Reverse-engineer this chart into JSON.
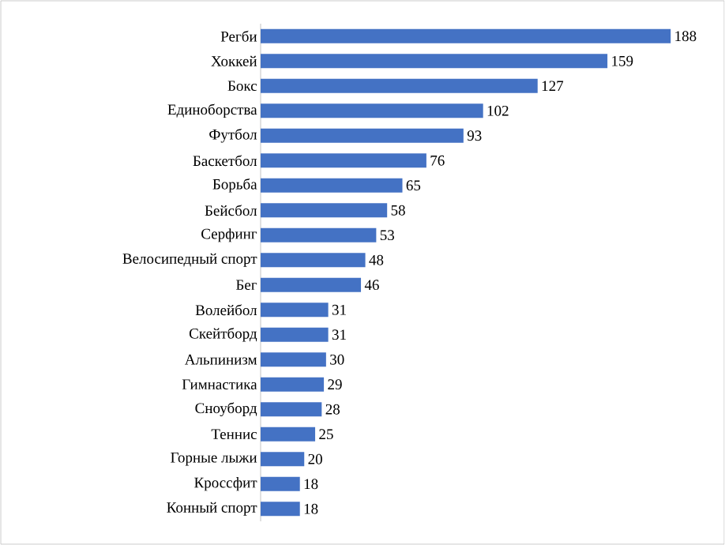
{
  "chart_data": {
    "type": "bar",
    "orientation": "horizontal",
    "data_labels": true,
    "color": "#4472c4",
    "categories": [
      "Регби",
      "Хоккей",
      "Бокс",
      "Единоборства",
      "Футбол",
      "Баскетбол",
      "Борьба",
      "Бейсбол",
      "Серфинг",
      "Велосипедный спорт",
      "Бег",
      "Волейбол",
      "Скейтборд",
      "Альпинизм",
      "Гимнастика",
      "Сноуборд",
      "Теннис",
      "Горные лыжи",
      "Кроссфит",
      "Конный спорт"
    ],
    "values": [
      188,
      159,
      127,
      102,
      93,
      76,
      65,
      58,
      53,
      48,
      46,
      31,
      31,
      30,
      29,
      28,
      25,
      20,
      18,
      18
    ]
  }
}
